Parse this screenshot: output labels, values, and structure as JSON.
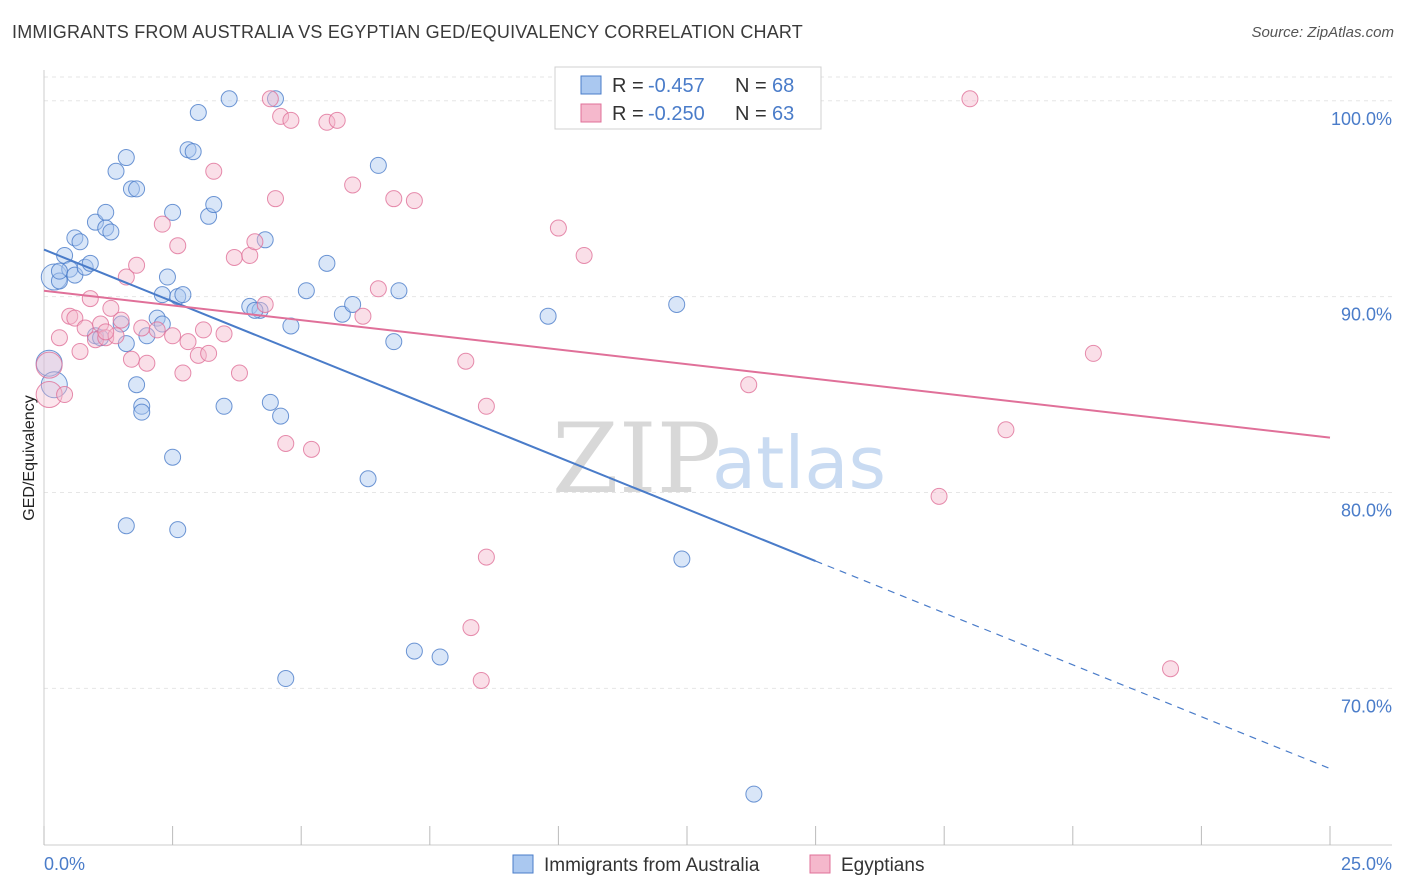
{
  "title": "IMMIGRANTS FROM AUSTRALIA VS EGYPTIAN GED/EQUIVALENCY CORRELATION CHART",
  "source": "Source: ZipAtlas.com",
  "colors": {
    "blue": "#4a7cc9",
    "blue_fill": "#aac8f0",
    "pink": "#e07099",
    "pink_fill": "#f5b8cc"
  },
  "legend": {
    "blue": {
      "r_label": "R =",
      "r_value": "-0.457",
      "n_label": "N =",
      "n_value": "68"
    },
    "pink": {
      "r_label": "R =",
      "r_value": "-0.250",
      "n_label": "N =",
      "n_value": "63"
    }
  },
  "watermark": {
    "zip": "ZIP",
    "atlas": "atlas"
  },
  "chart_data": {
    "type": "scatter",
    "xlabel": "",
    "ylabel": "GED/Equivalency",
    "xlim": [
      0,
      25
    ],
    "ylim": [
      62,
      103
    ],
    "x_tick_labels": [
      "0.0%",
      "25.0%"
    ],
    "y_ticks": [
      70,
      80,
      90,
      100
    ],
    "y_tick_labels": [
      "70.0%",
      "80.0%",
      "90.0%",
      "100.0%"
    ],
    "grid": true,
    "series": [
      {
        "name": "Immigrants from Australia",
        "color": "#4a7cc9",
        "trend": {
          "x0": 0,
          "y0": 92.4,
          "x1": 15,
          "y1": 76.5,
          "dash_to_x": 25,
          "dash_to_y": 65.9
        },
        "points": [
          [
            0.2,
            91.0
          ],
          [
            0.3,
            90.8
          ],
          [
            0.4,
            92.1
          ],
          [
            0.5,
            91.4
          ],
          [
            0.6,
            91.1
          ],
          [
            0.6,
            93.0
          ],
          [
            0.7,
            92.8
          ],
          [
            0.8,
            91.5
          ],
          [
            0.9,
            91.7
          ],
          [
            1.0,
            93.8
          ],
          [
            1.2,
            94.3
          ],
          [
            1.2,
            93.5
          ],
          [
            1.3,
            93.3
          ],
          [
            1.4,
            96.4
          ],
          [
            1.6,
            97.1
          ],
          [
            1.7,
            95.5
          ],
          [
            1.8,
            95.5
          ],
          [
            2.0,
            88.0
          ],
          [
            2.2,
            88.9
          ],
          [
            2.3,
            90.1
          ],
          [
            2.4,
            91.0
          ],
          [
            2.5,
            94.3
          ],
          [
            2.6,
            90.0
          ],
          [
            2.7,
            90.1
          ],
          [
            2.8,
            97.5
          ],
          [
            2.9,
            97.4
          ],
          [
            3.0,
            99.4
          ],
          [
            3.2,
            94.1
          ],
          [
            3.3,
            94.7
          ],
          [
            3.6,
            100.1
          ],
          [
            4.0,
            89.5
          ],
          [
            4.2,
            89.3
          ],
          [
            4.3,
            92.9
          ],
          [
            4.5,
            100.1
          ],
          [
            4.8,
            88.5
          ],
          [
            5.1,
            90.3
          ],
          [
            5.5,
            91.7
          ],
          [
            5.8,
            89.1
          ],
          [
            6.0,
            89.6
          ],
          [
            6.5,
            96.7
          ],
          [
            6.8,
            87.7
          ],
          [
            6.9,
            90.3
          ],
          [
            9.8,
            89.0
          ],
          [
            12.3,
            89.6
          ],
          [
            1.0,
            88.0
          ],
          [
            1.5,
            88.6
          ],
          [
            1.6,
            87.6
          ],
          [
            1.8,
            85.5
          ],
          [
            1.9,
            84.4
          ],
          [
            1.9,
            84.1
          ],
          [
            2.5,
            81.8
          ],
          [
            2.6,
            78.1
          ],
          [
            3.5,
            84.4
          ],
          [
            4.4,
            84.6
          ],
          [
            4.6,
            83.9
          ],
          [
            6.3,
            80.7
          ],
          [
            1.6,
            78.3
          ],
          [
            7.2,
            71.9
          ],
          [
            7.7,
            71.6
          ],
          [
            4.7,
            70.5
          ],
          [
            12.4,
            76.6
          ],
          [
            13.8,
            64.6
          ],
          [
            0.1,
            86.6
          ],
          [
            0.2,
            85.5
          ],
          [
            0.3,
            91.3
          ],
          [
            1.1,
            87.9
          ],
          [
            2.3,
            88.6
          ],
          [
            4.1,
            89.3
          ]
        ]
      },
      {
        "name": "Egyptians",
        "color": "#e07099",
        "trend": {
          "x0": 0,
          "y0": 90.3,
          "x1": 25,
          "y1": 82.8
        },
        "points": [
          [
            0.1,
            86.5
          ],
          [
            0.1,
            85.0
          ],
          [
            0.3,
            87.9
          ],
          [
            0.4,
            85.0
          ],
          [
            0.5,
            89.0
          ],
          [
            0.6,
            88.9
          ],
          [
            0.7,
            87.2
          ],
          [
            0.8,
            88.4
          ],
          [
            0.9,
            89.9
          ],
          [
            1.0,
            87.8
          ],
          [
            1.1,
            88.6
          ],
          [
            1.2,
            87.9
          ],
          [
            1.3,
            89.4
          ],
          [
            1.4,
            88.0
          ],
          [
            1.5,
            88.8
          ],
          [
            1.6,
            91.0
          ],
          [
            1.7,
            86.8
          ],
          [
            1.8,
            91.6
          ],
          [
            1.9,
            88.4
          ],
          [
            2.0,
            86.6
          ],
          [
            2.2,
            88.3
          ],
          [
            2.3,
            93.7
          ],
          [
            2.5,
            88.0
          ],
          [
            2.6,
            92.6
          ],
          [
            2.7,
            86.1
          ],
          [
            2.8,
            87.7
          ],
          [
            3.0,
            87.0
          ],
          [
            3.1,
            88.3
          ],
          [
            3.2,
            87.1
          ],
          [
            3.3,
            96.4
          ],
          [
            3.5,
            88.1
          ],
          [
            3.7,
            92.0
          ],
          [
            3.8,
            86.1
          ],
          [
            4.0,
            92.1
          ],
          [
            4.1,
            92.8
          ],
          [
            4.3,
            89.6
          ],
          [
            4.5,
            95.0
          ],
          [
            4.6,
            99.2
          ],
          [
            4.7,
            82.5
          ],
          [
            4.8,
            99.0
          ],
          [
            5.2,
            82.2
          ],
          [
            5.5,
            98.9
          ],
          [
            5.7,
            99.0
          ],
          [
            6.0,
            95.7
          ],
          [
            6.2,
            89.0
          ],
          [
            6.5,
            90.4
          ],
          [
            6.8,
            95.0
          ],
          [
            7.2,
            94.9
          ],
          [
            8.2,
            86.7
          ],
          [
            8.6,
            84.4
          ],
          [
            8.6,
            76.7
          ],
          [
            8.3,
            73.1
          ],
          [
            8.5,
            70.4
          ],
          [
            10.0,
            93.5
          ],
          [
            10.5,
            92.1
          ],
          [
            13.7,
            85.5
          ],
          [
            17.4,
            79.8
          ],
          [
            18.7,
            83.2
          ],
          [
            20.4,
            87.1
          ],
          [
            21.9,
            71.0
          ],
          [
            4.4,
            100.1
          ],
          [
            18.0,
            100.1
          ],
          [
            1.2,
            88.2
          ]
        ]
      }
    ]
  },
  "bottom_legend": {
    "blue_label": "Immigrants from Australia",
    "pink_label": "Egyptians"
  }
}
